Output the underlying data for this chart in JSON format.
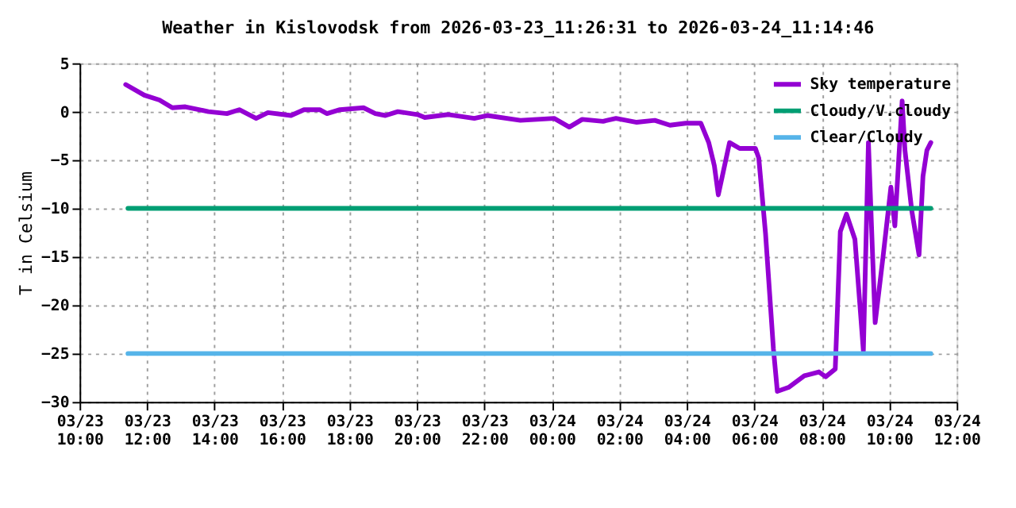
{
  "chart_data": {
    "type": "line",
    "title": "Weather in Kislovodsk from 2026-03-23_11:26:31 to 2026-03-24_11:14:46",
    "ylabel": "T in Celsium",
    "series": [
      {
        "name": "Sky temperature",
        "color": "#9400d3",
        "x": [
          "2026-03-23T11:22",
          "2026-03-23T11:55",
          "2026-03-23T12:22",
          "2026-03-23T12:45",
          "2026-03-23T13:08",
          "2026-03-23T13:49",
          "2026-03-23T14:22",
          "2026-03-23T14:44",
          "2026-03-23T15:14",
          "2026-03-23T15:35",
          "2026-03-23T16:16",
          "2026-03-23T16:39",
          "2026-03-23T17:07",
          "2026-03-23T17:20",
          "2026-03-23T17:43",
          "2026-03-23T18:25",
          "2026-03-23T18:46",
          "2026-03-23T19:04",
          "2026-03-23T19:26",
          "2026-03-23T20:01",
          "2026-03-23T20:14",
          "2026-03-23T20:56",
          "2026-03-23T21:42",
          "2026-03-23T22:05",
          "2026-03-23T23:04",
          "2026-03-24T00:04",
          "2026-03-24T00:31",
          "2026-03-24T00:54",
          "2026-03-24T01:31",
          "2026-03-24T01:54",
          "2026-03-24T02:31",
          "2026-03-24T03:03",
          "2026-03-24T03:30",
          "2026-03-24T03:58",
          "2026-03-24T04:25",
          "2026-03-24T04:39",
          "2026-03-24T04:49",
          "2026-03-24T04:56",
          "2026-03-24T05:16",
          "2026-03-24T05:34",
          "2026-03-24T06:02",
          "2026-03-24T06:08",
          "2026-03-24T06:20",
          "2026-03-24T06:34",
          "2026-03-24T06:41",
          "2026-03-24T07:01",
          "2026-03-24T07:29",
          "2026-03-24T07:55",
          "2026-03-24T08:07",
          "2026-03-24T08:24",
          "2026-03-24T08:33",
          "2026-03-24T08:44",
          "2026-03-24T08:59",
          "2026-03-24T09:14",
          "2026-03-24T09:23",
          "2026-03-24T09:30",
          "2026-03-24T09:35",
          "2026-03-24T09:49",
          "2026-03-24T10:03",
          "2026-03-24T10:10",
          "2026-03-24T10:23",
          "2026-03-24T10:28",
          "2026-03-24T10:40",
          "2026-03-24T10:53",
          "2026-03-24T11:00",
          "2026-03-24T11:07",
          "2026-03-24T11:14"
        ],
        "values": [
          2.8,
          1.7,
          1.2,
          0.4,
          0.5,
          0,
          -0.2,
          0.2,
          -0.7,
          -0.1,
          -0.4,
          0.2,
          0.2,
          -0.2,
          0.2,
          0.4,
          -0.2,
          -0.4,
          0,
          -0.3,
          -0.6,
          -0.3,
          -0.7,
          -0.4,
          -0.9,
          -0.7,
          -1.6,
          -0.8,
          -1.0,
          -0.7,
          -1.1,
          -0.9,
          -1.4,
          -1.2,
          -1.2,
          -3.2,
          -5.6,
          -8.6,
          -3.2,
          -3.8,
          -3.8,
          -4.8,
          -12.6,
          -24.5,
          -28.9,
          -28.5,
          -27.3,
          -26.9,
          -27.4,
          -26.6,
          -12.4,
          -10.6,
          -13.2,
          -24.7,
          -3.2,
          -14.2,
          -21.8,
          -15.0,
          -7.8,
          -11.8,
          1.1,
          -4.0,
          -10.2,
          -14.8,
          -6.7,
          -4.0,
          -3.2
        ]
      },
      {
        "name": "Cloudy/V.cloudy",
        "color": "#009e73",
        "x": [
          "2026-03-23T11:26",
          "2026-03-24T11:14"
        ],
        "values": [
          -10,
          -10
        ]
      },
      {
        "name": "Clear/Cloudy",
        "color": "#56b4e9",
        "x": [
          "2026-03-23T11:26",
          "2026-03-24T11:14"
        ],
        "values": [
          -25,
          -25
        ]
      }
    ],
    "xlim": [
      "2026-03-23T10:00",
      "2026-03-24T12:00"
    ],
    "xticks": [
      {
        "value": "2026-03-23T10:00",
        "label": "03/23\n10:00"
      },
      {
        "value": "2026-03-23T12:00",
        "label": "03/23\n12:00"
      },
      {
        "value": "2026-03-23T14:00",
        "label": "03/23\n14:00"
      },
      {
        "value": "2026-03-23T16:00",
        "label": "03/23\n16:00"
      },
      {
        "value": "2026-03-23T18:00",
        "label": "03/23\n18:00"
      },
      {
        "value": "2026-03-23T20:00",
        "label": "03/23\n20:00"
      },
      {
        "value": "2026-03-23T22:00",
        "label": "03/23\n22:00"
      },
      {
        "value": "2026-03-24T00:00",
        "label": "03/24\n00:00"
      },
      {
        "value": "2026-03-24T02:00",
        "label": "03/24\n02:00"
      },
      {
        "value": "2026-03-24T04:00",
        "label": "03/24\n04:00"
      },
      {
        "value": "2026-03-24T06:00",
        "label": "03/24\n06:00"
      },
      {
        "value": "2026-03-24T08:00",
        "label": "03/24\n08:00"
      },
      {
        "value": "2026-03-24T10:00",
        "label": "03/24\n10:00"
      },
      {
        "value": "2026-03-24T12:00",
        "label": "03/24\n12:00"
      }
    ],
    "ylim": [
      -30,
      5
    ],
    "yticks": [
      -30,
      -25,
      -20,
      -15,
      -10,
      -5,
      0,
      5
    ],
    "grid": true,
    "legend": "top right"
  }
}
